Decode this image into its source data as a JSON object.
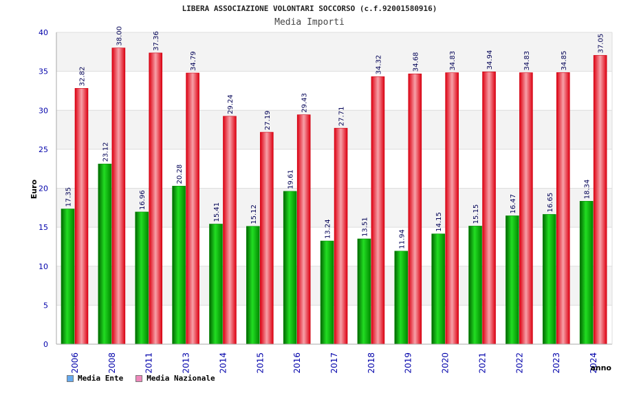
{
  "chart_data": {
    "type": "bar",
    "title": "LIBERA ASSOCIAZIONE VOLONTARI SOCCORSO (c.f.92001580916)",
    "subtitle": "Media Importi",
    "xlabel": "anno",
    "ylabel": "Euro",
    "ylim": [
      0,
      40
    ],
    "yticks": [
      "0",
      "5",
      "10",
      "15",
      "20",
      "25",
      "30",
      "35",
      "40"
    ],
    "categories": [
      "2006",
      "2008",
      "2011",
      "2013",
      "2014",
      "2015",
      "2016",
      "2017",
      "2018",
      "2019",
      "2020",
      "2021",
      "2022",
      "2023",
      "2024"
    ],
    "series": [
      {
        "name": "Media Ente",
        "values": [
          17.35,
          23.12,
          16.96,
          20.28,
          15.41,
          15.12,
          19.61,
          13.24,
          13.51,
          11.94,
          14.15,
          15.15,
          16.47,
          16.65,
          18.34
        ],
        "labels": [
          "17.35",
          "23.12",
          "16.96",
          "20.28",
          "15.41",
          "15.12",
          "19.61",
          "13.24",
          "13.51",
          "11.94",
          "14.15",
          "15.15",
          "16.47",
          "16.65",
          "18.34"
        ],
        "bar_color": "#00bb00",
        "legend_color": "#66aaee"
      },
      {
        "name": "Media Nazionale",
        "values": [
          32.82,
          38.0,
          37.36,
          34.79,
          29.24,
          27.19,
          29.43,
          27.71,
          34.32,
          34.68,
          34.83,
          34.94,
          34.83,
          34.85,
          37.05
        ],
        "labels": [
          "32.82",
          "38.00",
          "37.36",
          "34.79",
          "29.24",
          "27.19",
          "29.43",
          "27.71",
          "34.32",
          "34.68",
          "34.83",
          "34.94",
          "34.83",
          "34.85",
          "37.05"
        ],
        "bar_color": "#ee1122",
        "legend_color": "#ee88bb"
      }
    ],
    "grid": true,
    "legend_position": "bottom-left"
  }
}
